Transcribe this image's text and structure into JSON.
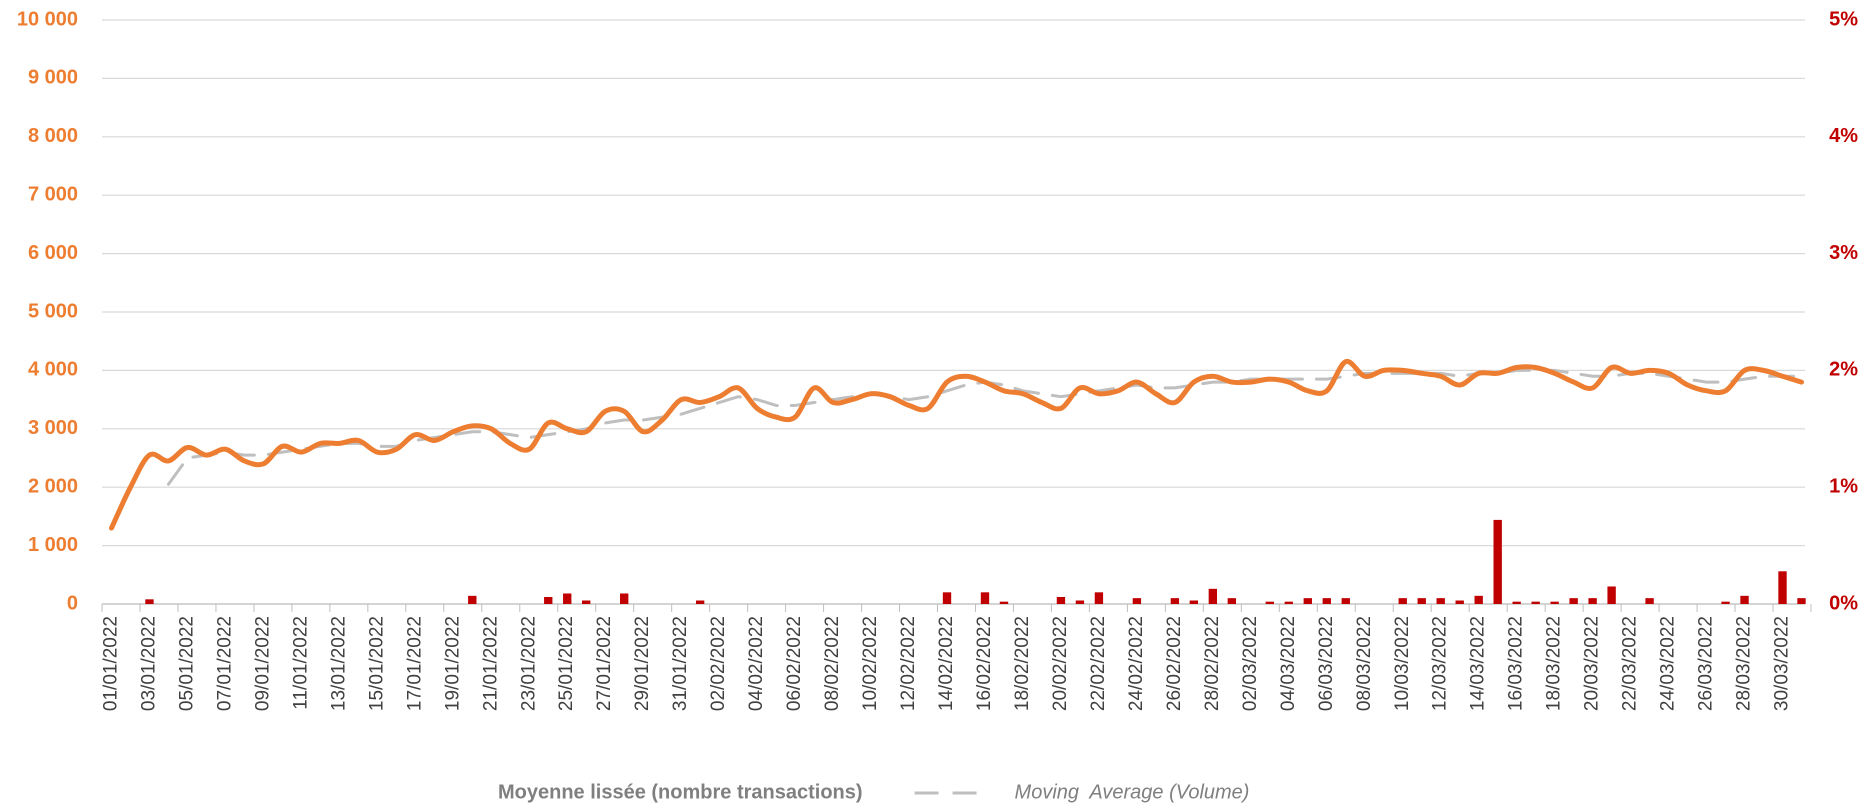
{
  "chart_data": {
    "type": "line",
    "categories": [
      "01/01/2022",
      null,
      "03/01/2022",
      null,
      "05/01/2022",
      null,
      "07/01/2022",
      null,
      "09/01/2022",
      null,
      "11/01/2022",
      null,
      "13/01/2022",
      null,
      "15/01/2022",
      null,
      "17/01/2022",
      null,
      "19/01/2022",
      null,
      "21/01/2022",
      null,
      "23/01/2022",
      null,
      "25/01/2022",
      null,
      "27/01/2022",
      null,
      "29/01/2022",
      null,
      "31/01/2022",
      null,
      "02/02/2022",
      null,
      "04/02/2022",
      null,
      "06/02/2022",
      null,
      "08/02/2022",
      null,
      "10/02/2022",
      null,
      "12/02/2022",
      null,
      "14/02/2022",
      null,
      "16/02/2022",
      null,
      "18/02/2022",
      null,
      "20/02/2022",
      null,
      "22/02/2022",
      null,
      "24/02/2022",
      null,
      "26/02/2022",
      null,
      "28/02/2022",
      null,
      "02/03/2022",
      null,
      "04/03/2022",
      null,
      "06/03/2022",
      null,
      "08/03/2022",
      null,
      "10/03/2022",
      null,
      "12/03/2022",
      null,
      "14/03/2022",
      null,
      "16/03/2022",
      null,
      "18/03/2022",
      null,
      "20/03/2022",
      null,
      "22/03/2022",
      null,
      "24/03/2022",
      null,
      "26/03/2022",
      null,
      "28/03/2022",
      null,
      "30/03/2022",
      null
    ],
    "series": [
      {
        "name": "Moyenne lissée (nombre transactions)",
        "type": "line",
        "color": "#ED7D31",
        "smooth": true,
        "values": [
          1300,
          2000,
          2550,
          2450,
          2680,
          2550,
          2650,
          2450,
          2400,
          2700,
          2600,
          2750,
          2750,
          2800,
          2600,
          2650,
          2900,
          2800,
          2950,
          3050,
          3000,
          2750,
          2650,
          3100,
          3000,
          2950,
          3300,
          3300,
          2950,
          3150,
          3500,
          3450,
          3550,
          3700,
          3350,
          3200,
          3200,
          3700,
          3450,
          3500,
          3600,
          3550,
          3400,
          3350,
          3800,
          3900,
          3800,
          3650,
          3600,
          3450,
          3350,
          3700,
          3600,
          3650,
          3800,
          3600,
          3450,
          3800,
          3900,
          3800,
          3800,
          3850,
          3800,
          3650,
          3650,
          4150,
          3900,
          4000,
          4000,
          3950,
          3900,
          3750,
          3950,
          3950,
          4050,
          4050,
          3950,
          3800,
          3700,
          4050,
          3950,
          4000,
          3950,
          3750,
          3650,
          3650,
          4000,
          4000,
          3900,
          3800
        ]
      },
      {
        "name": "Moving  Average (Volume)",
        "type": "line",
        "color": "#BFBFBF",
        "dashed": true,
        "values": [
          null,
          null,
          null,
          2050,
          2500,
          2550,
          2600,
          2550,
          2550,
          2600,
          2650,
          2700,
          2750,
          2750,
          2700,
          2700,
          2800,
          2850,
          2900,
          2950,
          2950,
          2900,
          2850,
          2900,
          2950,
          3000,
          3100,
          3150,
          3150,
          3200,
          3250,
          3350,
          3450,
          3550,
          3500,
          3400,
          3400,
          3450,
          3500,
          3550,
          3600,
          3550,
          3500,
          3550,
          3650,
          3750,
          3800,
          3750,
          3650,
          3600,
          3550,
          3600,
          3650,
          3700,
          3750,
          3700,
          3700,
          3750,
          3800,
          3800,
          3850,
          3850,
          3850,
          3850,
          3850,
          3900,
          3950,
          3950,
          3950,
          3950,
          3950,
          3900,
          3950,
          3950,
          4000,
          4000,
          4000,
          3950,
          3900,
          3900,
          3950,
          3950,
          3900,
          3850,
          3800,
          3800,
          3850,
          3900,
          3900,
          3900
        ]
      },
      {
        "type": "bar",
        "axis": "y2",
        "color": "#C00000",
        "values": [
          0,
          0,
          0.04,
          0,
          0,
          0,
          0,
          0,
          0,
          0,
          0,
          0,
          0,
          0,
          0,
          0,
          0,
          0,
          0,
          0.07,
          0,
          0,
          0,
          0.06,
          0.09,
          0.03,
          0,
          0.09,
          0,
          0,
          0,
          0.03,
          0,
          0,
          0,
          0,
          0,
          0,
          0,
          0,
          0,
          0,
          0,
          0,
          0.1,
          0,
          0.1,
          0.02,
          0,
          0,
          0.06,
          0.03,
          0.1,
          0,
          0.05,
          0,
          0.05,
          0.03,
          0.13,
          0.05,
          0,
          0.02,
          0.02,
          0.05,
          0.05,
          0.05,
          0,
          0,
          0.05,
          0.05,
          0.05,
          0.03,
          0.07,
          0.72,
          0.02,
          0.02,
          0.02,
          0.05,
          0.05,
          0.15,
          0,
          0.05,
          0,
          0,
          0,
          0.02,
          0.07,
          0,
          0.28,
          0.05
        ]
      }
    ],
    "ylim": [
      0,
      10000
    ],
    "yticks": [
      0,
      {
        "value": 1000,
        "label": "1 000"
      },
      {
        "value": 2000,
        "label": "2 000"
      },
      {
        "value": 3000,
        "label": "3 000"
      },
      {
        "value": 4000,
        "label": "4 000"
      },
      {
        "value": 5000,
        "label": "5 000"
      },
      {
        "value": 6000,
        "label": "6 000"
      },
      {
        "value": 7000,
        "label": "7 000"
      },
      {
        "value": 8000,
        "label": "8 000"
      },
      {
        "value": 9000,
        "label": "9 000"
      },
      {
        "value": 10000,
        "label": "10 000"
      }
    ],
    "y2lim": [
      0,
      5
    ],
    "y2ticks": [
      {
        "value": 0,
        "label": "0%"
      },
      {
        "value": 1,
        "label": "1%"
      },
      {
        "value": 2,
        "label": "2%"
      },
      {
        "value": 3,
        "label": "3%"
      },
      {
        "value": 4,
        "label": "4%"
      },
      {
        "value": 5,
        "label": "5%"
      }
    ],
    "y_color": "#ED7D31",
    "y2_color": "#C00000",
    "grid": true,
    "legend": "bottom"
  }
}
